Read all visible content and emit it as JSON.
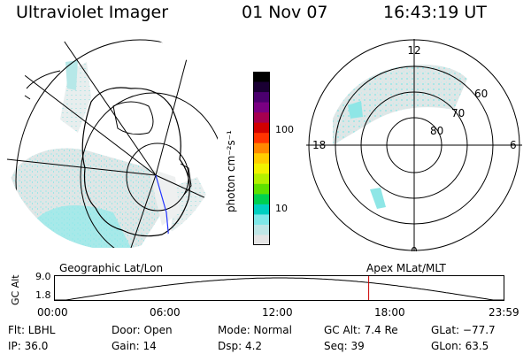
{
  "header": {
    "title": "Ultraviolet Imager",
    "date": "01 Nov 07",
    "time": "16:43:19 UT"
  },
  "geo_map": {
    "label": "Geographic Lat/Lon"
  },
  "mag_map": {
    "label": "Apex MLat/MLT",
    "lat_labels": [
      "60",
      "70",
      "80"
    ],
    "mlt_labels": {
      "top": "12",
      "left": "18",
      "right": "6",
      "bottom": "0"
    }
  },
  "colorbar": {
    "unit_label": "photon cm⁻²s⁻¹",
    "tick_labels": [
      "100",
      "10"
    ],
    "colors": [
      "#000000",
      "#1a0033",
      "#4b006e",
      "#7a0082",
      "#a6004f",
      "#d10000",
      "#ff3300",
      "#ff8800",
      "#ffcc00",
      "#f2f200",
      "#b4f000",
      "#5ee000",
      "#00d050",
      "#00d0c0",
      "#7ee8e8",
      "#bfe6e6",
      "#e4e4e4"
    ]
  },
  "altitude_plot": {
    "axis_title": "GC Alt",
    "y_ticks": [
      "9.0",
      "1.8"
    ],
    "x_ticks": [
      "00:00",
      "06:00",
      "12:00",
      "18:00",
      "23:59"
    ],
    "current_time_fraction": 0.698,
    "marker_color": "#cc0000"
  },
  "info": {
    "flt": "Flt: LBHL",
    "ip": "IP: 36.0",
    "door": "Door: Open",
    "gain": "Gain: 14",
    "mode": "Mode: Normal",
    "dsp": "Dsp:     4.2",
    "gc_alt": "GC Alt: 7.4 Re",
    "seq": "Seq: 39",
    "glat": "GLat: −77.7",
    "glon": "GLon:   63.5"
  }
}
